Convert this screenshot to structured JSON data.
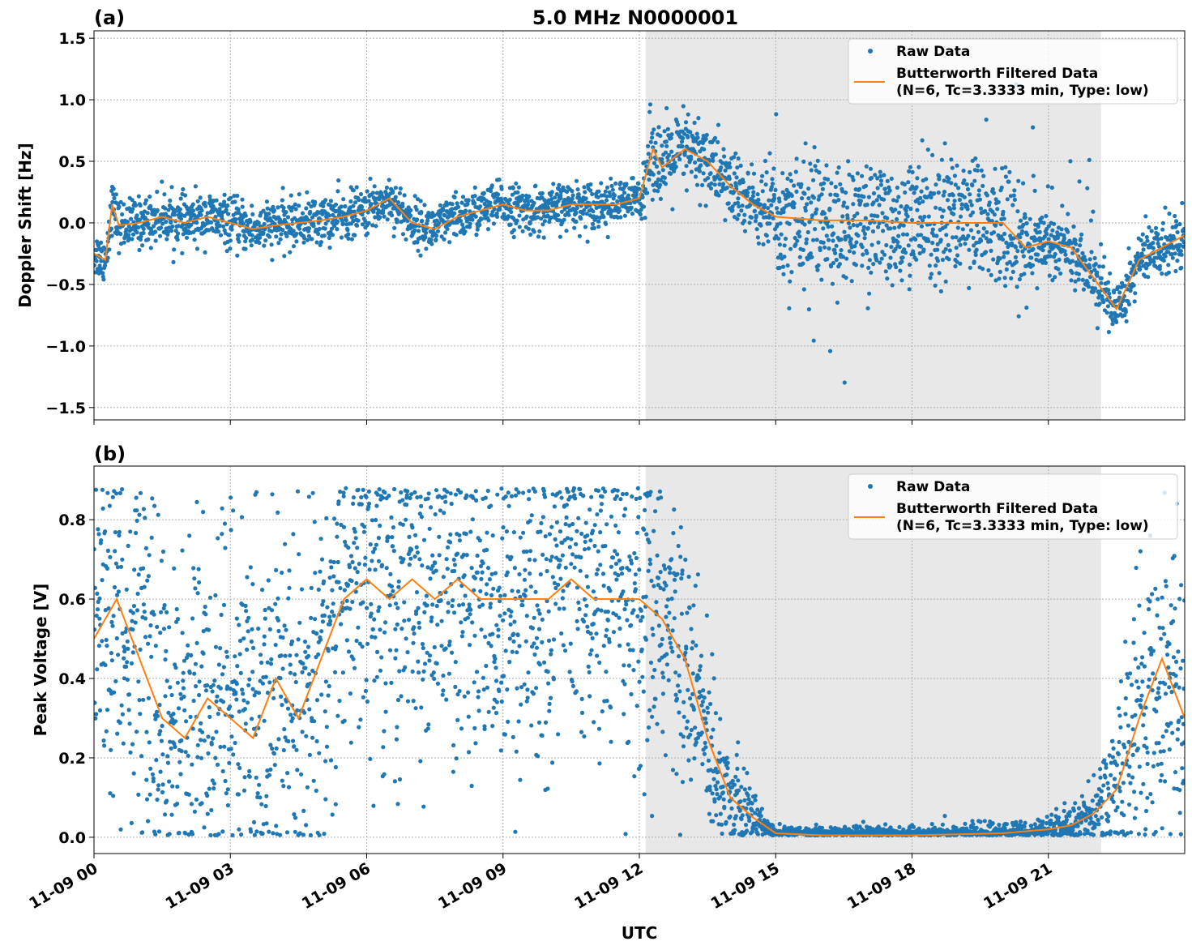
{
  "chart_data": [
    {
      "type": "scatter",
      "panel_label": "(a)",
      "title": "5.0 MHz N0000001",
      "xlabel": "",
      "ylabel": "Doppler Shift [Hz]",
      "xlim_hours": [
        0,
        24
      ],
      "ylim": [
        -1.6,
        1.56
      ],
      "x_tick_labels": [
        "11-09 00",
        "11-09 03",
        "11-09 06",
        "11-09 09",
        "11-09 12",
        "11-09 15",
        "11-09 18",
        "11-09 21"
      ],
      "x_tick_hours": [
        0,
        3,
        6,
        9,
        12,
        15,
        18,
        21
      ],
      "y_ticks": [
        -1.5,
        -1.0,
        -0.5,
        0.0,
        0.5,
        1.0,
        1.5
      ],
      "y_tick_labels": [
        "−1.5",
        "−1.0",
        "−0.5",
        "0.0",
        "0.5",
        "1.0",
        "1.5"
      ],
      "grid": true,
      "legend_position": "top-right",
      "shaded_region_hours": [
        12.14,
        22.16
      ],
      "shade_color": "#e8e8e8",
      "series": [
        {
          "name": "Raw Data",
          "kind": "scatter",
          "color": "#1f77b4",
          "spread": [
            [
              0,
              0.09
            ],
            [
              0.5,
              0.1
            ],
            [
              12,
              0.09
            ],
            [
              12.2,
              0.17
            ],
            [
              14.5,
              0.15
            ],
            [
              15,
              0.22
            ],
            [
              20.3,
              0.22
            ],
            [
              20.5,
              0.14
            ],
            [
              23,
              0.12
            ],
            [
              24,
              0.12
            ]
          ]
        },
        {
          "name": "Butterworth Filtered Data\n(N=6, Tc=3.3333 min, Type: low)",
          "kind": "line",
          "color": "#ff7f0e",
          "x": [
            0,
            0.25,
            0.4,
            0.55,
            1,
            1.5,
            2,
            2.5,
            3,
            3.5,
            4,
            4.5,
            5,
            5.5,
            6,
            6.5,
            7,
            7.5,
            8,
            8.5,
            9,
            9.5,
            10,
            10.5,
            11,
            11.5,
            12,
            12.3,
            12.5,
            13,
            13.5,
            14,
            14.5,
            15,
            16,
            17,
            18,
            19,
            20,
            20.5,
            21,
            21.5,
            22,
            22.5,
            23,
            23.5,
            24
          ],
          "y": [
            -0.25,
            -0.3,
            0.15,
            -0.02,
            0.0,
            0.05,
            0.0,
            0.05,
            0.0,
            -0.05,
            -0.02,
            0.0,
            0.02,
            0.05,
            0.1,
            0.2,
            0.0,
            -0.05,
            0.05,
            0.1,
            0.15,
            0.1,
            0.1,
            0.15,
            0.15,
            0.15,
            0.2,
            0.6,
            0.45,
            0.6,
            0.5,
            0.3,
            0.15,
            0.05,
            0.02,
            0.02,
            0.0,
            0.0,
            0.0,
            -0.2,
            -0.15,
            -0.2,
            -0.45,
            -0.7,
            -0.3,
            -0.2,
            -0.1
          ]
        }
      ]
    },
    {
      "type": "scatter",
      "panel_label": "(b)",
      "title": "",
      "xlabel": "UTC",
      "ylabel": "Peak Voltage [V]",
      "xlim_hours": [
        0,
        24
      ],
      "ylim": [
        -0.041,
        0.935
      ],
      "x_tick_labels": [
        "11-09 00",
        "11-09 03",
        "11-09 06",
        "11-09 09",
        "11-09 12",
        "11-09 15",
        "11-09 18",
        "11-09 21"
      ],
      "x_tick_hours": [
        0,
        3,
        6,
        9,
        12,
        15,
        18,
        21
      ],
      "y_ticks": [
        0.0,
        0.2,
        0.4,
        0.6,
        0.8
      ],
      "y_tick_labels": [
        "0.0",
        "0.2",
        "0.4",
        "0.6",
        "0.8"
      ],
      "grid": true,
      "legend_position": "top-right",
      "shaded_region_hours": [
        12.14,
        22.16
      ],
      "shade_color": "#e8e8e8",
      "series": [
        {
          "name": "Raw Data",
          "kind": "scatter",
          "color": "#1f77b4",
          "spread": [
            [
              0,
              0.2
            ],
            [
              5,
              0.22
            ],
            [
              12.5,
              0.2
            ],
            [
              13.5,
              0.12
            ],
            [
              14.5,
              0.03
            ],
            [
              15,
              0.01
            ],
            [
              21,
              0.015
            ],
            [
              22,
              0.04
            ],
            [
              23,
              0.18
            ],
            [
              24,
              0.2
            ]
          ]
        },
        {
          "name": "Butterworth Filtered Data\n(N=6, Tc=3.3333 min, Type: low)",
          "kind": "line",
          "color": "#ff7f0e",
          "x": [
            0,
            0.5,
            1,
            1.5,
            2,
            2.5,
            3,
            3.5,
            4,
            4.5,
            5,
            5.5,
            6,
            6.5,
            7,
            7.5,
            8,
            8.5,
            9,
            9.5,
            10,
            10.5,
            11,
            11.5,
            12,
            12.5,
            13,
            13.5,
            14,
            14.5,
            15,
            16,
            18,
            20,
            21,
            21.5,
            22,
            22.5,
            23,
            23.5,
            24
          ],
          "y": [
            0.5,
            0.6,
            0.45,
            0.3,
            0.25,
            0.35,
            0.3,
            0.25,
            0.4,
            0.3,
            0.45,
            0.6,
            0.65,
            0.6,
            0.65,
            0.6,
            0.65,
            0.6,
            0.6,
            0.6,
            0.6,
            0.65,
            0.6,
            0.6,
            0.6,
            0.55,
            0.45,
            0.25,
            0.1,
            0.05,
            0.01,
            0.005,
            0.005,
            0.01,
            0.02,
            0.03,
            0.06,
            0.12,
            0.3,
            0.45,
            0.3
          ]
        }
      ]
    }
  ]
}
